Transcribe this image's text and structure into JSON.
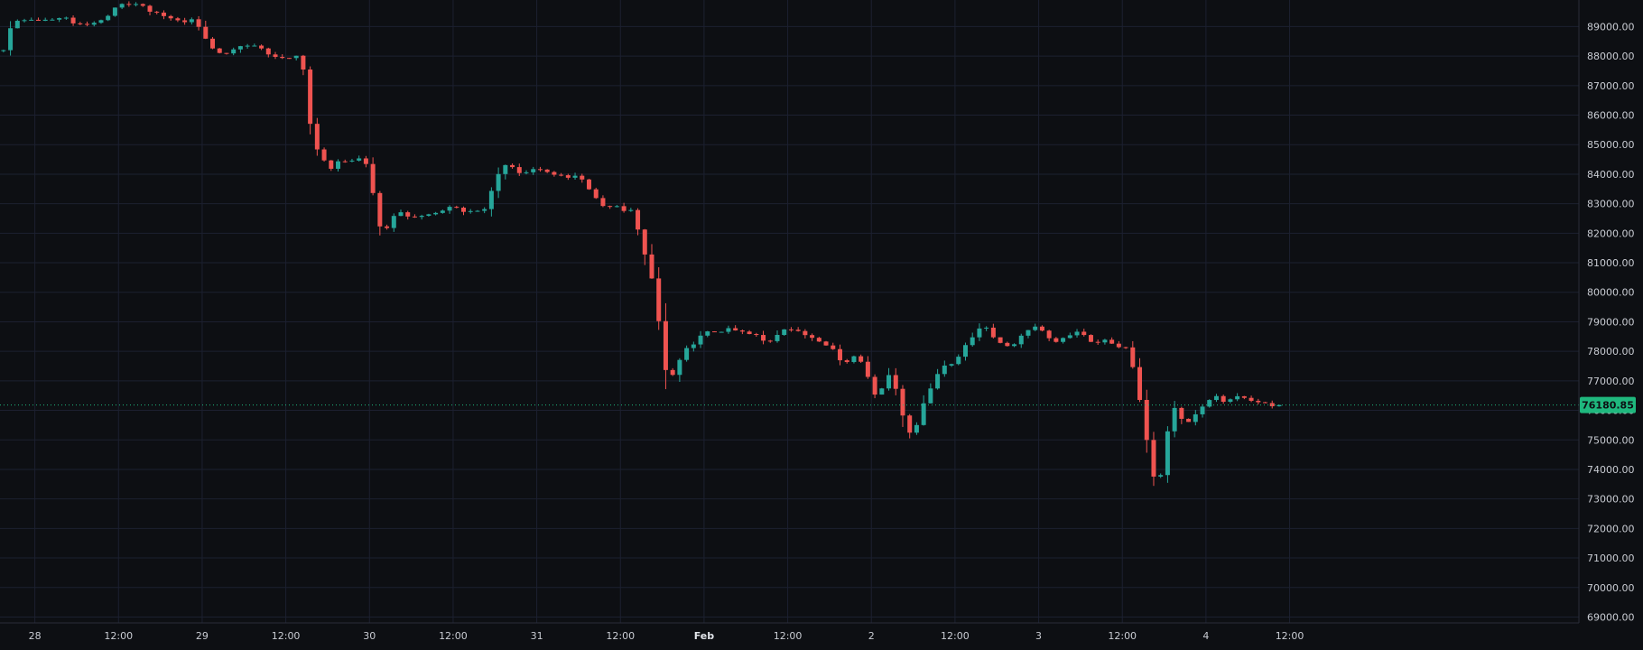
{
  "chart_data": {
    "type": "candlestick",
    "title": "",
    "xlabel": "",
    "ylabel": "",
    "ylim": [
      68800,
      89900
    ],
    "y_ticks": [
      "89000.00",
      "88000.00",
      "87000.00",
      "86000.00",
      "85000.00",
      "84000.00",
      "83000.00",
      "82000.00",
      "81000.00",
      "80000.00",
      "79000.00",
      "78000.00",
      "77000.00",
      "76000.00",
      "75000.00",
      "74000.00",
      "73000.00",
      "72000.00",
      "71000.00",
      "70000.00",
      "69000.00"
    ],
    "x_ticks": [
      {
        "label": "28",
        "hour": 0,
        "bold": false
      },
      {
        "label": "12:00",
        "hour": 12,
        "bold": false
      },
      {
        "label": "29",
        "hour": 24,
        "bold": false
      },
      {
        "label": "12:00",
        "hour": 36,
        "bold": false
      },
      {
        "label": "30",
        "hour": 48,
        "bold": false
      },
      {
        "label": "12:00",
        "hour": 60,
        "bold": false
      },
      {
        "label": "31",
        "hour": 72,
        "bold": false
      },
      {
        "label": "12:00",
        "hour": 84,
        "bold": false
      },
      {
        "label": "Feb",
        "hour": 96,
        "bold": true
      },
      {
        "label": "12:00",
        "hour": 108,
        "bold": false
      },
      {
        "label": "2",
        "hour": 120,
        "bold": false
      },
      {
        "label": "12:00",
        "hour": 132,
        "bold": false
      },
      {
        "label": "3",
        "hour": 144,
        "bold": false
      },
      {
        "label": "12:00",
        "hour": 156,
        "bold": false
      },
      {
        "label": "4",
        "hour": 168,
        "bold": false
      },
      {
        "label": "12:00",
        "hour": 180,
        "bold": false
      }
    ],
    "hour_range": [
      -5,
      221.5
    ],
    "last_price": 76180.85,
    "last_price_label": "76180.85",
    "colors": {
      "up": "#26a69a",
      "down": "#ef5350",
      "price_tag": "#1fb87e",
      "grid": "#1c2030",
      "background": "#0d0f13"
    },
    "candle_waypoints": [
      [
        -4.5,
        88200
      ],
      [
        -4,
        88800
      ],
      [
        -2,
        89300
      ],
      [
        0,
        89200
      ],
      [
        4,
        89300
      ],
      [
        6,
        89100
      ],
      [
        8,
        89100
      ],
      [
        10,
        89300
      ],
      [
        12,
        89700
      ],
      [
        14,
        89800
      ],
      [
        16,
        89600
      ],
      [
        18,
        89400
      ],
      [
        20,
        89200
      ],
      [
        23,
        89200
      ],
      [
        24,
        88800
      ],
      [
        26,
        88000
      ],
      [
        28,
        88200
      ],
      [
        30,
        88350
      ],
      [
        32,
        88300
      ],
      [
        34,
        88000
      ],
      [
        36,
        87900
      ],
      [
        38,
        88000
      ],
      [
        39,
        87000
      ],
      [
        40,
        84500
      ],
      [
        41,
        85100
      ],
      [
        42,
        83800
      ],
      [
        43,
        84500
      ],
      [
        45,
        84400
      ],
      [
        47,
        84600
      ],
      [
        48,
        84200
      ],
      [
        49,
        82500
      ],
      [
        50,
        81900
      ],
      [
        51,
        82400
      ],
      [
        52,
        82800
      ],
      [
        54,
        82500
      ],
      [
        57,
        82600
      ],
      [
        60,
        83000
      ],
      [
        62,
        82700
      ],
      [
        65,
        82900
      ],
      [
        66,
        83900
      ],
      [
        67,
        84200
      ],
      [
        68,
        84300
      ],
      [
        70,
        84000
      ],
      [
        72,
        84200
      ],
      [
        74,
        84000
      ],
      [
        78,
        83900
      ],
      [
        80,
        83400
      ],
      [
        81,
        83000
      ],
      [
        83,
        82900
      ],
      [
        86,
        82700
      ],
      [
        87,
        81600
      ],
      [
        88,
        81000
      ],
      [
        89,
        80000
      ],
      [
        90,
        78000
      ],
      [
        91,
        76800
      ],
      [
        92,
        77500
      ],
      [
        93,
        78000
      ],
      [
        95,
        78300
      ],
      [
        96,
        78700
      ],
      [
        98,
        78600
      ],
      [
        100,
        78800
      ],
      [
        103,
        78600
      ],
      [
        105,
        78300
      ],
      [
        107,
        78600
      ],
      [
        108,
        78800
      ],
      [
        110,
        78600
      ],
      [
        112,
        78400
      ],
      [
        114,
        78200
      ],
      [
        116,
        77600
      ],
      [
        118,
        77900
      ],
      [
        120,
        76800
      ],
      [
        121,
        76300
      ],
      [
        122,
        77100
      ],
      [
        123,
        77200
      ],
      [
        124,
        76200
      ],
      [
        125,
        75500
      ],
      [
        126,
        75100
      ],
      [
        127,
        75800
      ],
      [
        128,
        76600
      ],
      [
        130,
        77400
      ],
      [
        132,
        77700
      ],
      [
        133,
        78000
      ],
      [
        134,
        78400
      ],
      [
        136,
        78900
      ],
      [
        138,
        78400
      ],
      [
        140,
        78100
      ],
      [
        142,
        78700
      ],
      [
        144,
        78900
      ],
      [
        146,
        78300
      ],
      [
        148,
        78500
      ],
      [
        150,
        78700
      ],
      [
        152,
        78200
      ],
      [
        153,
        78400
      ],
      [
        155,
        78200
      ],
      [
        156,
        78200
      ],
      [
        157,
        78000
      ],
      [
        158,
        77000
      ],
      [
        159,
        75800
      ],
      [
        160,
        74200
      ],
      [
        161,
        73200
      ],
      [
        162,
        74500
      ],
      [
        163,
        76200
      ],
      [
        165,
        75500
      ],
      [
        167,
        76000
      ],
      [
        169,
        76500
      ],
      [
        171,
        76300
      ],
      [
        173,
        76500
      ],
      [
        175,
        76300
      ],
      [
        177,
        76200
      ],
      [
        178.5,
        76180
      ]
    ]
  }
}
